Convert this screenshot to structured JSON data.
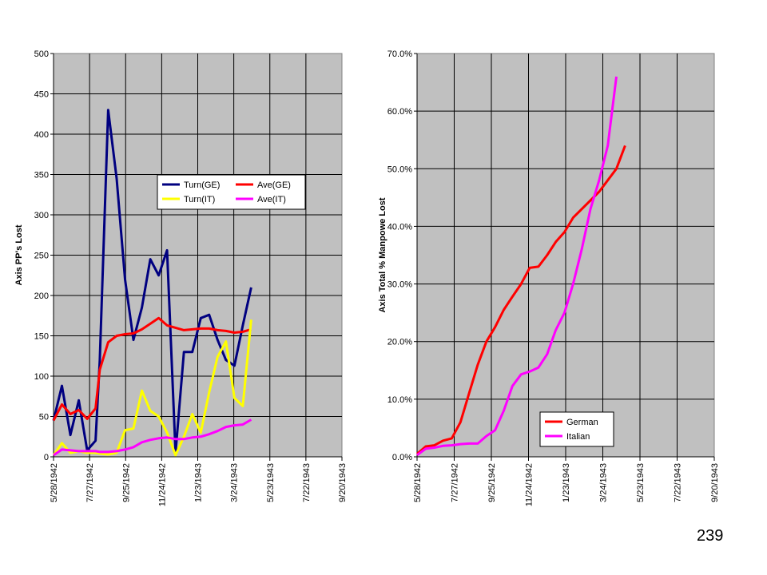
{
  "page_number": "239",
  "chart_data": [
    {
      "type": "line",
      "title": "",
      "xlabel": "",
      "ylabel": "Axis PP's Lost",
      "ylim": [
        0,
        500
      ],
      "yticks": [
        "0",
        "50",
        "100",
        "150",
        "200",
        "250",
        "300",
        "350",
        "400",
        "450",
        "500"
      ],
      "xlim": [
        "5/28/1942",
        "9/20/1943"
      ],
      "xticks": [
        "5/28/1942",
        "7/27/1942",
        "9/25/1942",
        "11/24/1942",
        "1/23/1943",
        "3/24/1943",
        "5/23/1943",
        "7/22/1943",
        "9/20/1943"
      ],
      "grid": true,
      "plot_background": "#c0c0c0",
      "legend": "upper-middle",
      "series": [
        {
          "name": "Turn(GE)",
          "color": "#000080",
          "values": [
            [
              "1942-05-28",
              45
            ],
            [
              "1942-06-11",
              88
            ],
            [
              "1942-06-25",
              27
            ],
            [
              "1942-07-09",
              70
            ],
            [
              "1942-07-23",
              8
            ],
            [
              "1942-08-06",
              20
            ],
            [
              "1942-08-13",
              120
            ],
            [
              "1942-08-27",
              430
            ],
            [
              "1942-09-10",
              345
            ],
            [
              "1942-09-24",
              220
            ],
            [
              "1942-10-08",
              145
            ],
            [
              "1942-10-22",
              185
            ],
            [
              "1942-11-05",
              245
            ],
            [
              "1942-11-19",
              225
            ],
            [
              "1942-12-03",
              256
            ],
            [
              "1942-12-17",
              5
            ],
            [
              "1942-12-31",
              130
            ],
            [
              "1943-01-14",
              130
            ],
            [
              "1943-01-28",
              172
            ],
            [
              "1943-02-11",
              176
            ],
            [
              "1943-02-25",
              145
            ],
            [
              "1943-03-11",
              120
            ],
            [
              "1943-03-25",
              113
            ],
            [
              "1943-04-08",
              163
            ],
            [
              "1943-04-22",
              210
            ]
          ]
        },
        {
          "name": "Ave(GE)",
          "color": "#ff0000",
          "values": [
            [
              "1942-05-28",
              45
            ],
            [
              "1942-06-11",
              65
            ],
            [
              "1942-06-25",
              53
            ],
            [
              "1942-07-09",
              58
            ],
            [
              "1942-07-23",
              47
            ],
            [
              "1942-08-06",
              60
            ],
            [
              "1942-08-13",
              108
            ],
            [
              "1942-08-27",
              142
            ],
            [
              "1942-09-10",
              150
            ],
            [
              "1942-09-24",
              152
            ],
            [
              "1942-10-08",
              153
            ],
            [
              "1942-10-22",
              158
            ],
            [
              "1942-11-05",
              165
            ],
            [
              "1942-11-19",
              172
            ],
            [
              "1942-12-03",
              163
            ],
            [
              "1942-12-17",
              160
            ],
            [
              "1942-12-31",
              157
            ],
            [
              "1943-01-14",
              158
            ],
            [
              "1943-01-28",
              159
            ],
            [
              "1943-02-11",
              159
            ],
            [
              "1943-02-25",
              157
            ],
            [
              "1943-03-11",
              156
            ],
            [
              "1943-03-25",
              154
            ],
            [
              "1943-04-08",
              155
            ],
            [
              "1943-04-22",
              158
            ]
          ]
        },
        {
          "name": "Turn(IT)",
          "color": "#ffff00",
          "values": [
            [
              "1942-05-28",
              2
            ],
            [
              "1942-06-11",
              17
            ],
            [
              "1942-06-25",
              5
            ],
            [
              "1942-07-09",
              7
            ],
            [
              "1942-07-23",
              5
            ],
            [
              "1942-08-06",
              5
            ],
            [
              "1942-08-13",
              4
            ],
            [
              "1942-08-27",
              3
            ],
            [
              "1942-09-10",
              5
            ],
            [
              "1942-09-24",
              33
            ],
            [
              "1942-10-08",
              35
            ],
            [
              "1942-10-22",
              82
            ],
            [
              "1942-11-05",
              57
            ],
            [
              "1942-11-19",
              50
            ],
            [
              "1942-12-03",
              30
            ],
            [
              "1942-12-17",
              2
            ],
            [
              "1942-12-31",
              25
            ],
            [
              "1943-01-14",
              53
            ],
            [
              "1943-01-28",
              30
            ],
            [
              "1943-02-11",
              80
            ],
            [
              "1943-02-25",
              124
            ],
            [
              "1943-03-11",
              143
            ],
            [
              "1943-03-25",
              73
            ],
            [
              "1943-04-08",
              63
            ],
            [
              "1943-04-22",
              170
            ]
          ]
        },
        {
          "name": "Ave(IT)",
          "color": "#ff00ff",
          "values": [
            [
              "1942-05-28",
              2
            ],
            [
              "1942-06-11",
              9
            ],
            [
              "1942-06-25",
              8
            ],
            [
              "1942-07-09",
              7
            ],
            [
              "1942-07-23",
              7
            ],
            [
              "1942-08-06",
              7
            ],
            [
              "1942-08-13",
              6
            ],
            [
              "1942-08-27",
              6
            ],
            [
              "1942-09-10",
              7
            ],
            [
              "1942-09-24",
              9
            ],
            [
              "1942-10-08",
              12
            ],
            [
              "1942-10-22",
              18
            ],
            [
              "1942-11-05",
              21
            ],
            [
              "1942-11-19",
              23
            ],
            [
              "1942-12-03",
              24
            ],
            [
              "1942-12-17",
              22
            ],
            [
              "1942-12-31",
              22
            ],
            [
              "1943-01-14",
              24
            ],
            [
              "1943-01-28",
              25
            ],
            [
              "1943-02-11",
              28
            ],
            [
              "1943-02-25",
              32
            ],
            [
              "1943-03-11",
              37
            ],
            [
              "1943-03-25",
              39
            ],
            [
              "1943-04-08",
              40
            ],
            [
              "1943-04-22",
              46
            ]
          ]
        }
      ]
    },
    {
      "type": "line",
      "title": "",
      "xlabel": "",
      "ylabel": "Axis Total % Manpowe Lost",
      "ylim": [
        0,
        70
      ],
      "yticks": [
        "0.0%",
        "10.0%",
        "20.0%",
        "30.0%",
        "40.0%",
        "50.0%",
        "60.0%",
        "70.0%"
      ],
      "xlim": [
        "5/28/1942",
        "9/20/1943"
      ],
      "xticks": [
        "5/28/1942",
        "7/27/1942",
        "9/25/1942",
        "11/24/1942",
        "1/23/1943",
        "3/24/1943",
        "5/23/1943",
        "7/22/1943",
        "9/20/1943"
      ],
      "grid": true,
      "plot_background": "#c0c0c0",
      "legend": "lower-middle",
      "series": [
        {
          "name": "German",
          "color": "#ff0000",
          "values": [
            [
              "1942-05-28",
              0.5
            ],
            [
              "1942-06-11",
              1.8
            ],
            [
              "1942-06-25",
              2.0
            ],
            [
              "1942-07-09",
              2.8
            ],
            [
              "1942-07-23",
              3.2
            ],
            [
              "1942-08-06",
              6.0
            ],
            [
              "1942-08-20",
              11.0
            ],
            [
              "1942-09-03",
              16.0
            ],
            [
              "1942-09-17",
              20.0
            ],
            [
              "1942-10-01",
              22.5
            ],
            [
              "1942-10-15",
              25.5
            ],
            [
              "1942-10-29",
              27.8
            ],
            [
              "1942-11-12",
              30.0
            ],
            [
              "1942-11-26",
              32.8
            ],
            [
              "1942-12-10",
              33.0
            ],
            [
              "1942-12-24",
              35.0
            ],
            [
              "1943-01-07",
              37.3
            ],
            [
              "1943-01-21",
              39.0
            ],
            [
              "1943-02-04",
              41.5
            ],
            [
              "1943-02-18",
              43.0
            ],
            [
              "1943-03-04",
              44.5
            ],
            [
              "1943-03-18",
              46.0
            ],
            [
              "1943-04-01",
              48.0
            ],
            [
              "1943-04-15",
              50.0
            ],
            [
              "1943-04-29",
              54.0
            ]
          ]
        },
        {
          "name": "Italian",
          "color": "#ff00ff",
          "values": [
            [
              "1942-05-28",
              0.3
            ],
            [
              "1942-06-11",
              1.4
            ],
            [
              "1942-06-25",
              1.6
            ],
            [
              "1942-07-09",
              1.9
            ],
            [
              "1942-07-23",
              2.0
            ],
            [
              "1942-08-06",
              2.2
            ],
            [
              "1942-08-20",
              2.3
            ],
            [
              "1942-09-03",
              2.3
            ],
            [
              "1942-09-17",
              3.6
            ],
            [
              "1942-10-01",
              4.6
            ],
            [
              "1942-10-15",
              8.0
            ],
            [
              "1942-10-29",
              12.3
            ],
            [
              "1942-11-12",
              14.3
            ],
            [
              "1942-11-26",
              14.8
            ],
            [
              "1942-12-10",
              15.5
            ],
            [
              "1942-12-24",
              17.8
            ],
            [
              "1943-01-07",
              22.0
            ],
            [
              "1943-01-21",
              25.0
            ],
            [
              "1943-02-04",
              30.0
            ],
            [
              "1943-02-18",
              36.0
            ],
            [
              "1943-03-04",
              43.0
            ],
            [
              "1943-03-18",
              48.0
            ],
            [
              "1943-04-01",
              54.0
            ],
            [
              "1943-04-15",
              66.0
            ]
          ]
        }
      ]
    }
  ]
}
